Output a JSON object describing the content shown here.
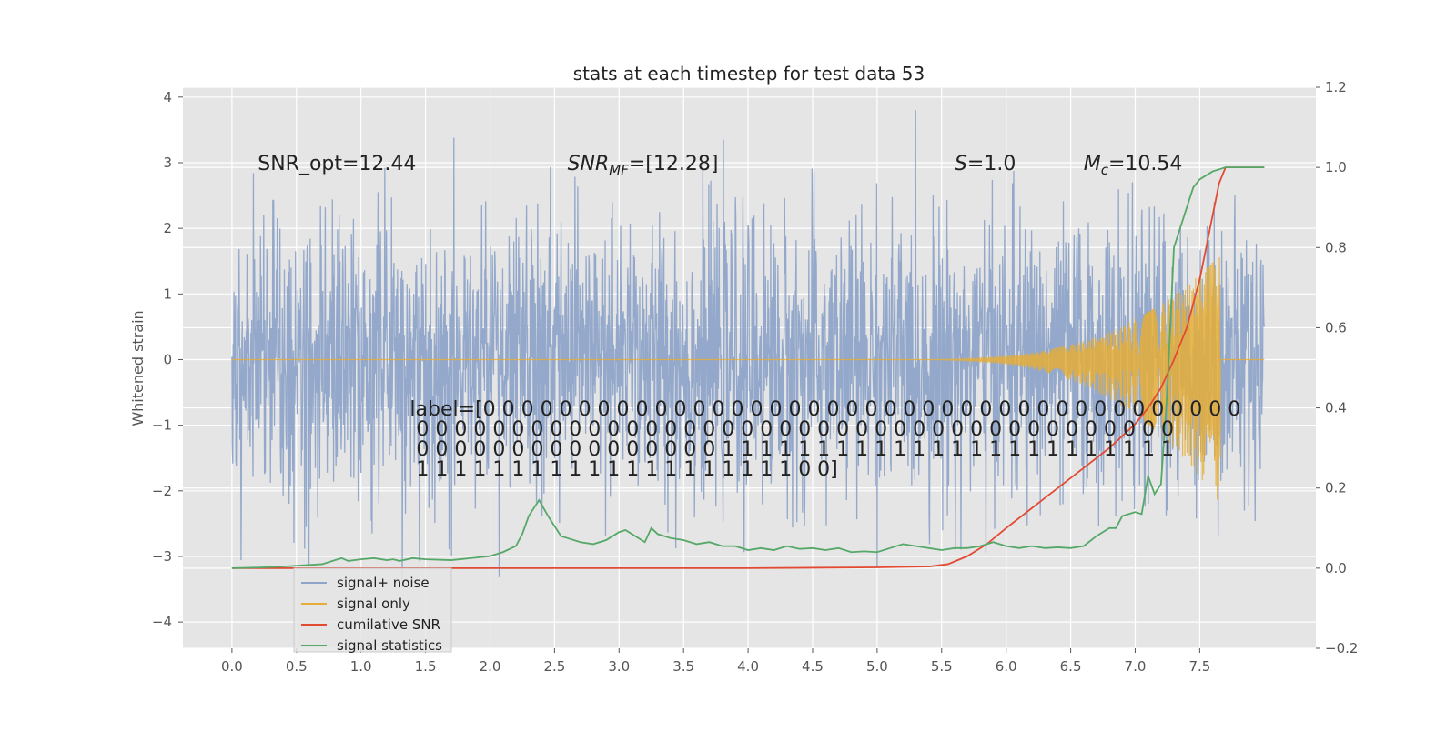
{
  "chart_data": {
    "type": "line",
    "title": "stats at each timestep for test data 53",
    "ylabel": "Whitened strain",
    "xlim": [
      -0.38,
      8.4
    ],
    "ylim": [
      -4.4,
      4.15
    ],
    "y2lim": [
      -0.2,
      1.2
    ],
    "xticks": [
      0.0,
      0.5,
      1.0,
      1.5,
      2.0,
      2.5,
      3.0,
      3.5,
      4.0,
      4.5,
      5.0,
      5.5,
      6.0,
      6.5,
      7.0,
      7.5
    ],
    "xtick_labels": [
      "0.0",
      "0.5",
      "1.0",
      "1.5",
      "2.0",
      "2.5",
      "3.0",
      "3.5",
      "4.0",
      "4.5",
      "5.0",
      "5.5",
      "6.0",
      "6.5",
      "7.0",
      "7.5"
    ],
    "yticks": [
      -4,
      -3,
      -2,
      -1,
      0,
      1,
      2,
      3,
      4
    ],
    "ytick_labels": [
      "−4",
      "−3",
      "−2",
      "−1",
      "0",
      "1",
      "2",
      "3",
      "4"
    ],
    "y2ticks": [
      -0.2,
      0.0,
      0.2,
      0.4,
      0.6,
      0.8,
      1.0,
      1.2
    ],
    "y2tick_labels": [
      "−0.2",
      "0.0",
      "0.2",
      "0.4",
      "0.6",
      "0.8",
      "1.0",
      "1.2"
    ],
    "grid": true,
    "legend_position": "lower-left",
    "colors": {
      "background": "#e5e5e5",
      "grid": "#ffffff",
      "signal_noise": "#8ea4c8",
      "signal_only": "#e5ae38",
      "cumulative_snr": "#e24a33",
      "signal_statistics": "#55a868"
    },
    "series": [
      {
        "name": "signal+ noise",
        "axis": "left",
        "kind": "noise",
        "t_start": 0.0,
        "t_end": 8.0,
        "sigma": 1.0
      },
      {
        "name": "signal only",
        "axis": "left",
        "kind": "chirp",
        "t_start": 0.0,
        "t_end": 7.66,
        "chirp_onset": 5.4,
        "amplitude_max": 1.6,
        "amplitude_min": -2.2
      },
      {
        "name": "cumilative SNR",
        "axis": "right",
        "x": [
          0.0,
          1.0,
          2.0,
          3.0,
          4.0,
          5.0,
          5.4,
          5.55,
          5.7,
          5.85,
          6.0,
          6.2,
          6.4,
          6.6,
          6.8,
          7.0,
          7.1,
          7.2,
          7.3,
          7.4,
          7.5,
          7.55,
          7.6,
          7.65,
          7.7,
          8.0
        ],
        "values": [
          0.0,
          0.0,
          0.0,
          0.0,
          0.0,
          0.002,
          0.004,
          0.01,
          0.03,
          0.06,
          0.1,
          0.15,
          0.2,
          0.25,
          0.3,
          0.36,
          0.4,
          0.45,
          0.52,
          0.6,
          0.72,
          0.8,
          0.88,
          0.96,
          1.0,
          1.0
        ]
      },
      {
        "name": "signal statistics",
        "axis": "right",
        "x": [
          0.0,
          0.25,
          0.45,
          0.7,
          0.8,
          0.85,
          0.9,
          1.0,
          1.1,
          1.2,
          1.25,
          1.3,
          1.4,
          1.5,
          1.7,
          1.85,
          2.0,
          2.1,
          2.2,
          2.25,
          2.3,
          2.38,
          2.45,
          2.55,
          2.6,
          2.7,
          2.8,
          2.9,
          3.0,
          3.05,
          3.1,
          3.2,
          3.25,
          3.3,
          3.4,
          3.5,
          3.6,
          3.7,
          3.8,
          3.9,
          4.0,
          4.1,
          4.2,
          4.3,
          4.4,
          4.5,
          4.6,
          4.7,
          4.8,
          4.9,
          5.0,
          5.1,
          5.2,
          5.3,
          5.4,
          5.5,
          5.6,
          5.7,
          5.8,
          5.9,
          6.0,
          6.1,
          6.2,
          6.3,
          6.4,
          6.5,
          6.6,
          6.7,
          6.8,
          6.85,
          6.9,
          7.0,
          7.05,
          7.1,
          7.15,
          7.2,
          7.25,
          7.3,
          7.35,
          7.4,
          7.45,
          7.5,
          7.6,
          7.7,
          8.0
        ],
        "values": [
          0.0,
          0.002,
          0.005,
          0.01,
          0.02,
          0.025,
          0.018,
          0.022,
          0.025,
          0.02,
          0.022,
          0.018,
          0.025,
          0.022,
          0.02,
          0.025,
          0.03,
          0.04,
          0.055,
          0.085,
          0.13,
          0.17,
          0.13,
          0.08,
          0.075,
          0.065,
          0.06,
          0.07,
          0.09,
          0.095,
          0.085,
          0.065,
          0.1,
          0.085,
          0.075,
          0.07,
          0.06,
          0.065,
          0.055,
          0.055,
          0.045,
          0.05,
          0.045,
          0.055,
          0.048,
          0.05,
          0.045,
          0.05,
          0.04,
          0.042,
          0.04,
          0.05,
          0.06,
          0.055,
          0.05,
          0.045,
          0.05,
          0.05,
          0.055,
          0.065,
          0.055,
          0.05,
          0.055,
          0.05,
          0.052,
          0.05,
          0.055,
          0.08,
          0.1,
          0.1,
          0.13,
          0.14,
          0.135,
          0.23,
          0.185,
          0.21,
          0.45,
          0.8,
          0.85,
          0.9,
          0.95,
          0.97,
          0.99,
          1.0,
          1.0
        ]
      }
    ],
    "annotations": [
      {
        "id": "snr-opt",
        "text": "SNR_opt=12.44",
        "x": 0.2,
        "y": 3.0
      },
      {
        "id": "snr-mf",
        "text": "SNR_MF=[12.28]",
        "x": 2.6,
        "y": 3.0
      },
      {
        "id": "s-value",
        "text": "S=1.0",
        "x": 5.6,
        "y": 3.0
      },
      {
        "id": "mc-value",
        "text": "M_c=10.54",
        "x": 6.6,
        "y": 3.0
      }
    ],
    "label_text": [
      "label=[0 0 0 0 0 0 0 0 0 0 0 0 0 0 0 0 0 0 0 0 0 0 0 0 0 0 0 0 0 0 0 0 0 0 0 0 0 0 0 0",
      " 0 0 0 0 0 0 0 0 0 0 0 0 0 0 0 0 0 0 0 0 0 0 0 0 0 0 0 0 0 0 0 0 0 0 0 0 0 0 0 0",
      " 0 0 0 0 0 0 0 0 0 0 0 0 0 0 0 0 1 1 1 1 1 1 1 1 1 1 1 1 1 1 1 1 1 1 1 1 1 1 1 1",
      " 1 1 1 1 1 1 1 1 1 1 1 1 1 1 1 1 1 1 1 1 0 0]"
    ],
    "label_x": 1.4,
    "label_y": -0.85
  }
}
